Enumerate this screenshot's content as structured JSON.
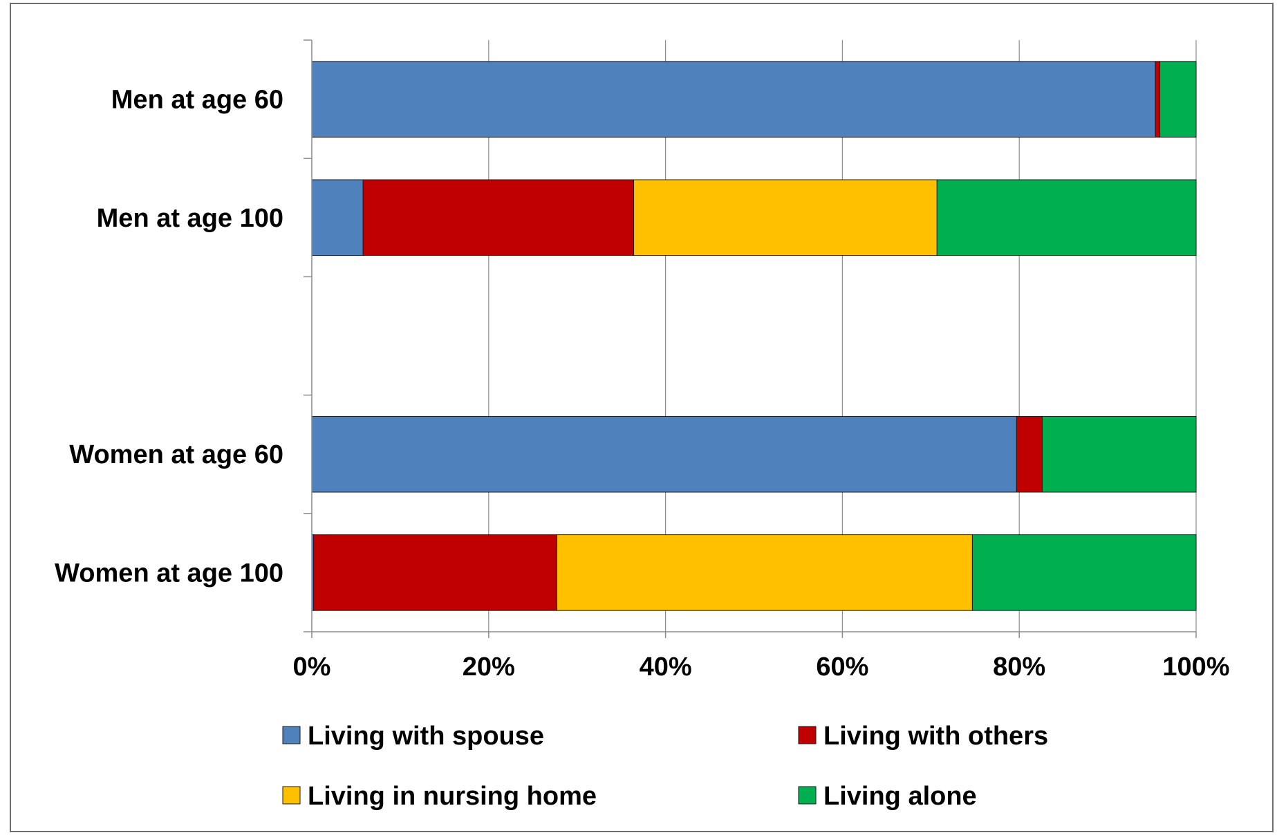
{
  "chart_data": {
    "type": "bar",
    "orientation": "horizontal",
    "stacked": "percent",
    "categories": [
      "Men at age 60",
      "Men at age 100",
      "",
      "Women at age 60",
      "Women at age 100"
    ],
    "series": [
      {
        "name": "Living with spouse",
        "color": "#4F81BD",
        "values": [
          95.4,
          5.8,
          null,
          79.7,
          0.2
        ]
      },
      {
        "name": "Living with others",
        "color": "#C00000",
        "values": [
          0.5,
          30.6,
          null,
          2.9,
          27.5
        ]
      },
      {
        "name": "Living in nursing home",
        "color": "#FFC000",
        "values": [
          0.0,
          34.3,
          null,
          0.0,
          47.0
        ]
      },
      {
        "name": "Living alone",
        "color": "#00B050",
        "values": [
          4.1,
          29.3,
          null,
          17.4,
          25.3
        ]
      }
    ],
    "xlim": [
      0,
      100
    ],
    "xticks": [
      "0%",
      "20%",
      "40%",
      "60%",
      "80%",
      "100%"
    ],
    "xlabel": "",
    "ylabel": "",
    "grid": "vertical",
    "legend_position": "bottom"
  }
}
